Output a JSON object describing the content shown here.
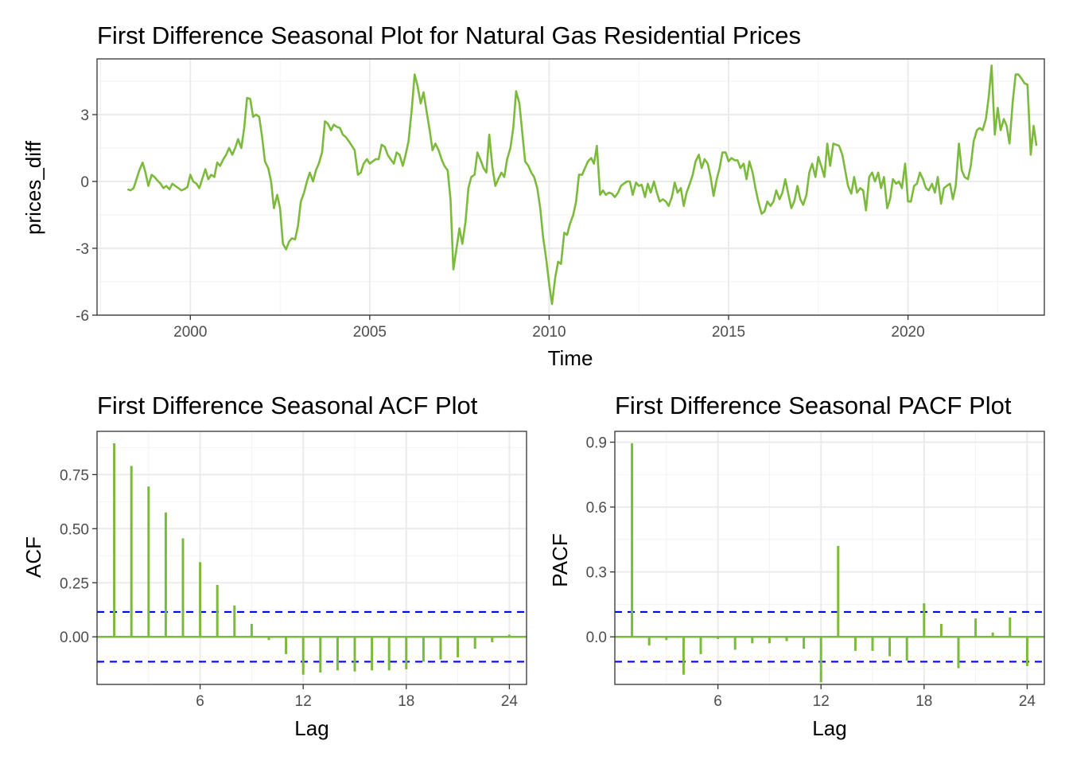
{
  "colors": {
    "series": "#7cba3c",
    "ci": "#0000ff",
    "grid": "#ebebeb",
    "border": "#333333"
  },
  "chart_data": [
    {
      "type": "line",
      "title": "First Difference Seasonal Plot for Natural Gas Residential Prices",
      "xlabel": "Time",
      "ylabel": "prices_diff",
      "xlim": [
        1997.4,
        2023.8
      ],
      "ylim": [
        -6,
        5.5
      ],
      "xticks": [
        2000,
        2005,
        2010,
        2015,
        2020
      ],
      "yticks": [
        -6,
        -3,
        0,
        3
      ],
      "ytick_labels": [
        "-6",
        "-3",
        "0",
        "3"
      ],
      "grid": true,
      "points": [
        [
          1998.25,
          -0.35
        ],
        [
          1998.33,
          -0.4
        ],
        [
          1998.42,
          -0.3
        ],
        [
          1998.5,
          0.1
        ],
        [
          1998.58,
          0.5
        ],
        [
          1998.67,
          0.85
        ],
        [
          1998.75,
          0.4
        ],
        [
          1998.83,
          -0.2
        ],
        [
          1998.92,
          0.3
        ],
        [
          1999.0,
          0.2
        ],
        [
          1999.08,
          0.05
        ],
        [
          1999.17,
          -0.1
        ],
        [
          1999.25,
          -0.3
        ],
        [
          1999.33,
          -0.2
        ],
        [
          1999.42,
          -0.35
        ],
        [
          1999.5,
          -0.1
        ],
        [
          1999.58,
          -0.2
        ],
        [
          1999.67,
          -0.3
        ],
        [
          1999.75,
          -0.4
        ],
        [
          1999.83,
          -0.35
        ],
        [
          1999.92,
          -0.25
        ],
        [
          2000.0,
          0.3
        ],
        [
          2000.08,
          0.0
        ],
        [
          2000.17,
          -0.1
        ],
        [
          2000.25,
          -0.3
        ],
        [
          2000.33,
          0.1
        ],
        [
          2000.42,
          0.55
        ],
        [
          2000.5,
          0.1
        ],
        [
          2000.58,
          0.3
        ],
        [
          2000.67,
          0.2
        ],
        [
          2000.75,
          0.85
        ],
        [
          2000.83,
          0.7
        ],
        [
          2000.92,
          1.0
        ],
        [
          2001.0,
          1.2
        ],
        [
          2001.08,
          1.5
        ],
        [
          2001.17,
          1.2
        ],
        [
          2001.25,
          1.5
        ],
        [
          2001.33,
          1.9
        ],
        [
          2001.42,
          1.5
        ],
        [
          2001.5,
          2.4
        ],
        [
          2001.58,
          3.75
        ],
        [
          2001.67,
          3.7
        ],
        [
          2001.75,
          2.9
        ],
        [
          2001.83,
          3.0
        ],
        [
          2001.92,
          2.9
        ],
        [
          2002.0,
          2.0
        ],
        [
          2002.08,
          0.9
        ],
        [
          2002.17,
          0.6
        ],
        [
          2002.25,
          0.0
        ],
        [
          2002.33,
          -1.2
        ],
        [
          2002.42,
          -0.6
        ],
        [
          2002.5,
          -1.2
        ],
        [
          2002.58,
          -2.8
        ],
        [
          2002.67,
          -3.05
        ],
        [
          2002.75,
          -2.7
        ],
        [
          2002.83,
          -2.55
        ],
        [
          2002.92,
          -2.6
        ],
        [
          2003.0,
          -2.0
        ],
        [
          2003.08,
          -0.9
        ],
        [
          2003.17,
          -0.5
        ],
        [
          2003.25,
          0.0
        ],
        [
          2003.33,
          0.4
        ],
        [
          2003.42,
          0.0
        ],
        [
          2003.5,
          0.5
        ],
        [
          2003.58,
          0.8
        ],
        [
          2003.67,
          1.3
        ],
        [
          2003.75,
          2.7
        ],
        [
          2003.83,
          2.6
        ],
        [
          2003.92,
          2.3
        ],
        [
          2004.0,
          2.55
        ],
        [
          2004.08,
          2.45
        ],
        [
          2004.17,
          2.4
        ],
        [
          2004.25,
          2.1
        ],
        [
          2004.33,
          2.0
        ],
        [
          2004.42,
          1.8
        ],
        [
          2004.5,
          1.6
        ],
        [
          2004.58,
          1.4
        ],
        [
          2004.67,
          0.3
        ],
        [
          2004.75,
          0.4
        ],
        [
          2004.83,
          0.8
        ],
        [
          2004.92,
          1.0
        ],
        [
          2005.0,
          0.8
        ],
        [
          2005.08,
          0.9
        ],
        [
          2005.17,
          1.0
        ],
        [
          2005.25,
          1.0
        ],
        [
          2005.33,
          1.65
        ],
        [
          2005.42,
          1.55
        ],
        [
          2005.5,
          1.2
        ],
        [
          2005.58,
          1.0
        ],
        [
          2005.67,
          0.8
        ],
        [
          2005.75,
          1.3
        ],
        [
          2005.83,
          1.2
        ],
        [
          2005.92,
          0.7
        ],
        [
          2006.0,
          1.2
        ],
        [
          2006.08,
          1.8
        ],
        [
          2006.17,
          3.2
        ],
        [
          2006.25,
          4.8
        ],
        [
          2006.33,
          4.3
        ],
        [
          2006.42,
          3.5
        ],
        [
          2006.5,
          4.0
        ],
        [
          2006.58,
          3.2
        ],
        [
          2006.67,
          2.3
        ],
        [
          2006.75,
          1.4
        ],
        [
          2006.83,
          1.7
        ],
        [
          2006.92,
          1.4
        ],
        [
          2007.0,
          1.0
        ],
        [
          2007.08,
          0.7
        ],
        [
          2007.17,
          0.5
        ],
        [
          2007.25,
          -0.8
        ],
        [
          2007.33,
          -3.95
        ],
        [
          2007.42,
          -3.0
        ],
        [
          2007.5,
          -2.1
        ],
        [
          2007.58,
          -2.8
        ],
        [
          2007.67,
          -1.8
        ],
        [
          2007.75,
          -0.3
        ],
        [
          2007.83,
          0.2
        ],
        [
          2007.92,
          0.3
        ],
        [
          2008.0,
          1.3
        ],
        [
          2008.08,
          1.0
        ],
        [
          2008.17,
          0.6
        ],
        [
          2008.25,
          0.4
        ],
        [
          2008.33,
          2.1
        ],
        [
          2008.42,
          0.6
        ],
        [
          2008.5,
          -0.2
        ],
        [
          2008.58,
          0.1
        ],
        [
          2008.67,
          0.4
        ],
        [
          2008.75,
          0.2
        ],
        [
          2008.83,
          1.0
        ],
        [
          2008.92,
          1.5
        ],
        [
          2009.0,
          2.4
        ],
        [
          2009.08,
          4.05
        ],
        [
          2009.17,
          3.5
        ],
        [
          2009.25,
          2.2
        ],
        [
          2009.33,
          0.9
        ],
        [
          2009.42,
          0.7
        ],
        [
          2009.5,
          0.4
        ],
        [
          2009.58,
          0.2
        ],
        [
          2009.67,
          -0.3
        ],
        [
          2009.75,
          -1.2
        ],
        [
          2009.83,
          -2.5
        ],
        [
          2009.92,
          -3.5
        ],
        [
          2010.0,
          -4.6
        ],
        [
          2010.08,
          -5.5
        ],
        [
          2010.17,
          -4.3
        ],
        [
          2010.25,
          -3.6
        ],
        [
          2010.33,
          -3.7
        ],
        [
          2010.42,
          -2.3
        ],
        [
          2010.5,
          -2.4
        ],
        [
          2010.58,
          -1.9
        ],
        [
          2010.67,
          -1.5
        ],
        [
          2010.75,
          -0.9
        ],
        [
          2010.83,
          0.3
        ],
        [
          2010.92,
          0.3
        ],
        [
          2011.0,
          0.6
        ],
        [
          2011.08,
          0.9
        ],
        [
          2011.17,
          1.05
        ],
        [
          2011.25,
          0.8
        ],
        [
          2011.33,
          1.6
        ],
        [
          2011.42,
          -0.6
        ],
        [
          2011.5,
          -0.4
        ],
        [
          2011.58,
          -0.6
        ],
        [
          2011.67,
          -0.5
        ],
        [
          2011.75,
          -0.55
        ],
        [
          2011.83,
          -0.7
        ],
        [
          2011.92,
          -0.5
        ],
        [
          2012.0,
          -0.2
        ],
        [
          2012.08,
          -0.1
        ],
        [
          2012.17,
          0.0
        ],
        [
          2012.25,
          0.0
        ],
        [
          2012.33,
          -0.6
        ],
        [
          2012.42,
          -0.05
        ],
        [
          2012.5,
          -0.2
        ],
        [
          2012.58,
          -0.15
        ],
        [
          2012.67,
          -0.7
        ],
        [
          2012.75,
          -0.1
        ],
        [
          2012.83,
          -0.5
        ],
        [
          2012.92,
          0.0
        ],
        [
          2013.0,
          -0.5
        ],
        [
          2013.08,
          -0.9
        ],
        [
          2013.17,
          -0.8
        ],
        [
          2013.25,
          -0.9
        ],
        [
          2013.33,
          -1.1
        ],
        [
          2013.42,
          -0.7
        ],
        [
          2013.5,
          -0.05
        ],
        [
          2013.58,
          -0.5
        ],
        [
          2013.67,
          -0.3
        ],
        [
          2013.75,
          -1.1
        ],
        [
          2013.83,
          -0.5
        ],
        [
          2013.92,
          -0.1
        ],
        [
          2014.0,
          0.3
        ],
        [
          2014.08,
          0.9
        ],
        [
          2014.17,
          1.2
        ],
        [
          2014.25,
          0.6
        ],
        [
          2014.33,
          1.0
        ],
        [
          2014.42,
          0.8
        ],
        [
          2014.5,
          0.2
        ],
        [
          2014.58,
          -0.65
        ],
        [
          2014.67,
          0.1
        ],
        [
          2014.75,
          0.6
        ],
        [
          2014.83,
          1.3
        ],
        [
          2014.92,
          1.3
        ],
        [
          2015.0,
          0.9
        ],
        [
          2015.08,
          1.05
        ],
        [
          2015.17,
          0.95
        ],
        [
          2015.25,
          0.95
        ],
        [
          2015.33,
          0.6
        ],
        [
          2015.42,
          0.8
        ],
        [
          2015.5,
          0.1
        ],
        [
          2015.58,
          0.9
        ],
        [
          2015.67,
          0.4
        ],
        [
          2015.75,
          -0.3
        ],
        [
          2015.83,
          -0.9
        ],
        [
          2015.92,
          -1.45
        ],
        [
          2016.0,
          -1.35
        ],
        [
          2016.08,
          -0.9
        ],
        [
          2016.17,
          -1.1
        ],
        [
          2016.25,
          -0.9
        ],
        [
          2016.33,
          -0.4
        ],
        [
          2016.42,
          -0.8
        ],
        [
          2016.5,
          -0.5
        ],
        [
          2016.58,
          0.1
        ],
        [
          2016.67,
          -0.6
        ],
        [
          2016.75,
          -1.2
        ],
        [
          2016.83,
          -0.9
        ],
        [
          2016.92,
          -0.2
        ],
        [
          2017.0,
          -0.8
        ],
        [
          2017.08,
          -1.05
        ],
        [
          2017.17,
          -0.6
        ],
        [
          2017.25,
          0.4
        ],
        [
          2017.33,
          0.8
        ],
        [
          2017.42,
          0.2
        ],
        [
          2017.5,
          1.1
        ],
        [
          2017.58,
          0.7
        ],
        [
          2017.67,
          0.2
        ],
        [
          2017.75,
          1.7
        ],
        [
          2017.83,
          0.7
        ],
        [
          2017.92,
          1.7
        ],
        [
          2018.0,
          1.65
        ],
        [
          2018.08,
          1.6
        ],
        [
          2018.17,
          1.2
        ],
        [
          2018.25,
          0.5
        ],
        [
          2018.33,
          -0.2
        ],
        [
          2018.42,
          -0.55
        ],
        [
          2018.5,
          0.2
        ],
        [
          2018.58,
          -0.5
        ],
        [
          2018.67,
          -0.3
        ],
        [
          2018.75,
          -0.4
        ],
        [
          2018.83,
          -1.3
        ],
        [
          2018.92,
          0.2
        ],
        [
          2019.0,
          0.4
        ],
        [
          2019.08,
          0.0
        ],
        [
          2019.17,
          0.4
        ],
        [
          2019.25,
          -0.3
        ],
        [
          2019.33,
          0.2
        ],
        [
          2019.42,
          -1.2
        ],
        [
          2019.5,
          -0.8
        ],
        [
          2019.58,
          0.1
        ],
        [
          2019.67,
          -0.1
        ],
        [
          2019.75,
          0.0
        ],
        [
          2019.83,
          -0.3
        ],
        [
          2019.92,
          0.8
        ],
        [
          2020.0,
          -0.9
        ],
        [
          2020.08,
          -0.9
        ],
        [
          2020.17,
          -0.2
        ],
        [
          2020.25,
          -0.1
        ],
        [
          2020.33,
          0.4
        ],
        [
          2020.42,
          0.1
        ],
        [
          2020.5,
          -0.3
        ],
        [
          2020.58,
          -0.4
        ],
        [
          2020.67,
          -0.1
        ],
        [
          2020.75,
          -0.5
        ],
        [
          2020.83,
          0.2
        ],
        [
          2020.92,
          -1.0
        ],
        [
          2021.0,
          -0.3
        ],
        [
          2021.08,
          -0.2
        ],
        [
          2021.17,
          -0.1
        ],
        [
          2021.25,
          -0.8
        ],
        [
          2021.33,
          -0.2
        ],
        [
          2021.42,
          1.7
        ],
        [
          2021.5,
          0.5
        ],
        [
          2021.58,
          0.2
        ],
        [
          2021.67,
          0.1
        ],
        [
          2021.75,
          0.7
        ],
        [
          2021.83,
          1.8
        ],
        [
          2021.92,
          2.3
        ],
        [
          2022.0,
          2.4
        ],
        [
          2022.08,
          2.3
        ],
        [
          2022.17,
          2.8
        ],
        [
          2022.25,
          3.8
        ],
        [
          2022.33,
          5.2
        ],
        [
          2022.42,
          2.1
        ],
        [
          2022.5,
          3.3
        ],
        [
          2022.58,
          2.3
        ],
        [
          2022.67,
          2.8
        ],
        [
          2022.75,
          2.5
        ],
        [
          2022.83,
          1.7
        ],
        [
          2022.92,
          3.6
        ],
        [
          2023.0,
          4.8
        ],
        [
          2023.08,
          4.8
        ],
        [
          2023.17,
          4.6
        ],
        [
          2023.25,
          4.4
        ],
        [
          2023.33,
          4.35
        ],
        [
          2023.42,
          1.2
        ],
        [
          2023.5,
          2.5
        ],
        [
          2023.58,
          1.6
        ]
      ]
    },
    {
      "type": "bar",
      "title": "First Difference Seasonal ACF Plot",
      "xlabel": "Lag",
      "ylabel": "ACF",
      "xlim": [
        0,
        25
      ],
      "ylim": [
        -0.22,
        0.95
      ],
      "xticks": [
        6,
        12,
        18,
        24
      ],
      "yticks": [
        0,
        0.25,
        0.5,
        0.75
      ],
      "ytick_labels": [
        "0.00",
        "0.25",
        "0.50",
        "0.75"
      ],
      "ci": 0.115,
      "lags": [
        1,
        2,
        3,
        4,
        5,
        6,
        7,
        8,
        9,
        10,
        11,
        12,
        13,
        14,
        15,
        16,
        17,
        18,
        19,
        20,
        21,
        22,
        23,
        24
      ],
      "values": [
        0.895,
        0.79,
        0.695,
        0.575,
        0.455,
        0.345,
        0.24,
        0.145,
        0.06,
        -0.015,
        -0.08,
        -0.175,
        -0.165,
        -0.155,
        -0.16,
        -0.155,
        -0.155,
        -0.15,
        -0.115,
        -0.105,
        -0.095,
        -0.055,
        -0.025,
        0.01
      ],
      "grid": true
    },
    {
      "type": "bar",
      "title": "First Difference Seasonal PACF Plot",
      "xlabel": "Lag",
      "ylabel": "PACF",
      "xlim": [
        0,
        25
      ],
      "ylim": [
        -0.22,
        0.95
      ],
      "xticks": [
        6,
        12,
        18,
        24
      ],
      "yticks": [
        0,
        0.3,
        0.6,
        0.9
      ],
      "ytick_labels": [
        "0.0",
        "0.3",
        "0.6",
        "0.9"
      ],
      "ci": 0.115,
      "lags": [
        1,
        2,
        3,
        4,
        5,
        6,
        7,
        8,
        9,
        10,
        11,
        12,
        13,
        14,
        15,
        16,
        17,
        18,
        19,
        20,
        21,
        22,
        23,
        24
      ],
      "values": [
        0.895,
        -0.04,
        -0.015,
        -0.175,
        -0.08,
        -0.01,
        -0.06,
        -0.03,
        -0.03,
        -0.02,
        -0.055,
        -0.21,
        0.42,
        -0.065,
        -0.065,
        -0.09,
        -0.11,
        0.155,
        0.06,
        -0.145,
        0.085,
        0.02,
        0.09,
        -0.135
      ],
      "grid": true
    }
  ]
}
